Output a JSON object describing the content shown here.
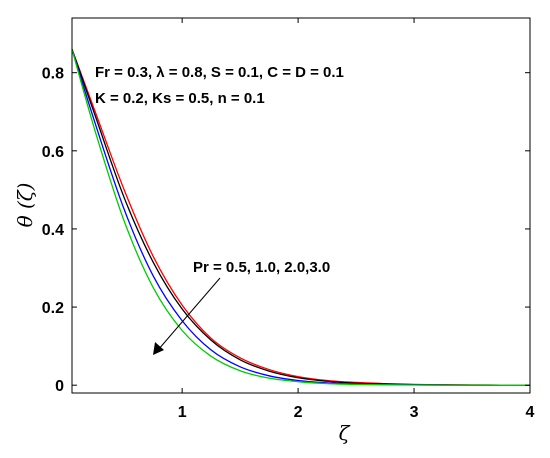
{
  "chart_data": {
    "type": "line",
    "xlabel": "ζ",
    "ylabel": "θ (ζ)",
    "xlim": [
      0.05,
      4
    ],
    "ylim": [
      -0.02,
      0.94
    ],
    "xticks": [
      {
        "value": 1,
        "label": "1"
      },
      {
        "value": 2,
        "label": "2"
      },
      {
        "value": 3,
        "label": "3"
      },
      {
        "value": 4,
        "label": "4"
      }
    ],
    "yticks": [
      {
        "value": 0,
        "label": "0"
      },
      {
        "value": 0.2,
        "label": "0.2"
      },
      {
        "value": 0.4,
        "label": "0.4"
      },
      {
        "value": 0.6,
        "label": "0.6"
      },
      {
        "value": 0.8,
        "label": "0.8"
      }
    ],
    "grid": false,
    "annotations": [
      "Fr = 0.3,  λ = 0.8, S = 0.1, C = D = 0.1",
      "K = 0.2, Ks = 0.5, n = 0.1",
      "Pr = 0.5, 1.0, 2.0,3.0"
    ],
    "series": [
      {
        "color": "#ff0000",
        "x": [
          0.05,
          0.25,
          0.5,
          0.75,
          1.0,
          1.25,
          1.5,
          1.75,
          2.0,
          2.25,
          2.5,
          2.75,
          3.0,
          3.25,
          3.5,
          3.75,
          4.0
        ],
        "y": [
          0.86,
          0.7,
          0.5,
          0.33,
          0.205,
          0.12,
          0.07,
          0.04,
          0.022,
          0.012,
          0.007,
          0.004,
          0.002,
          0.001,
          0.0005,
          0.0002,
          0.0
        ]
      },
      {
        "color": "#000000",
        "x": [
          0.05,
          0.25,
          0.5,
          0.75,
          1.0,
          1.25,
          1.5,
          1.75,
          2.0,
          2.25,
          2.5,
          2.75,
          3.0,
          3.25,
          3.5,
          3.75,
          4.0
        ],
        "y": [
          0.86,
          0.69,
          0.48,
          0.315,
          0.195,
          0.115,
          0.065,
          0.036,
          0.019,
          0.01,
          0.005,
          0.003,
          0.0015,
          0.0008,
          0.0004,
          0.0002,
          0.0
        ]
      },
      {
        "color": "#0000ff",
        "x": [
          0.05,
          0.25,
          0.5,
          0.75,
          1.0,
          1.25,
          1.5,
          1.75,
          2.0,
          2.25,
          2.5,
          2.75,
          3.0,
          3.25,
          3.5,
          3.75
        ],
        "y": [
          0.86,
          0.67,
          0.45,
          0.28,
          0.165,
          0.09,
          0.047,
          0.024,
          0.012,
          0.006,
          0.003,
          0.0015,
          0.0007,
          0.0003,
          0.0001,
          0.0
        ]
      },
      {
        "color": "#00cc00",
        "x": [
          0.05,
          0.25,
          0.5,
          0.75,
          1.0,
          1.25,
          1.5,
          1.75,
          2.0,
          2.25,
          2.5,
          2.75,
          3.0,
          3.25,
          3.5,
          3.75,
          4.0
        ],
        "y": [
          0.86,
          0.65,
          0.42,
          0.25,
          0.14,
          0.074,
          0.037,
          0.018,
          0.009,
          0.004,
          0.002,
          0.001,
          0.0005,
          0.0002,
          0.0001,
          0.0,
          0.0
        ]
      }
    ]
  }
}
